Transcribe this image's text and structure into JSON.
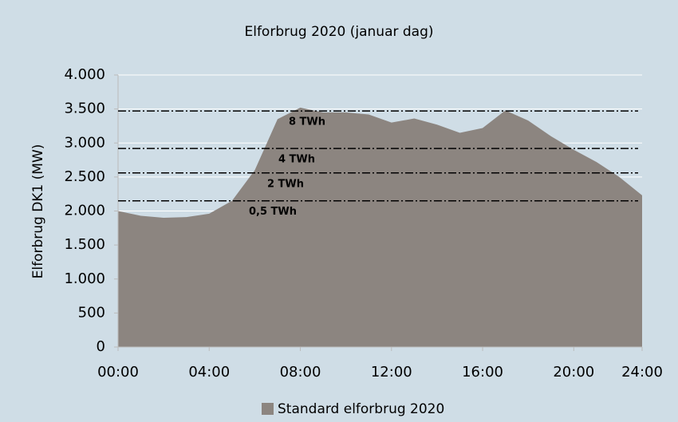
{
  "chart_data": {
    "type": "area",
    "title": "Elforbrug 2020 (januar dag)",
    "y_label": "Elforbrug DK1 (MW)",
    "x": [
      0,
      1,
      2,
      3,
      4,
      5,
      6,
      7,
      8,
      9,
      10,
      11,
      12,
      13,
      14,
      15,
      16,
      17,
      18,
      19,
      20,
      21,
      22,
      23
    ],
    "series": [
      {
        "name": "Standard elforbrug 2020",
        "color": "#8c8580",
        "values": [
          2000,
          1930,
          1900,
          1910,
          1960,
          2150,
          2600,
          3350,
          3520,
          3450,
          3450,
          3420,
          3300,
          3360,
          3270,
          3150,
          3220,
          3480,
          3330,
          3100,
          2900,
          2720,
          2500,
          2230
        ]
      }
    ],
    "xlim": [
      0,
      23
    ],
    "xticks": [
      {
        "value": 0,
        "label": "00:00"
      },
      {
        "value": 4,
        "label": "04:00"
      },
      {
        "value": 8,
        "label": "08:00"
      },
      {
        "value": 12,
        "label": "12:00"
      },
      {
        "value": 16,
        "label": "16:00"
      },
      {
        "value": 20,
        "label": "20:00"
      },
      {
        "value": 23,
        "label": "24:00"
      }
    ],
    "ylim": [
      0,
      4000
    ],
    "yticks": [
      0,
      500,
      {
        "value": 1000,
        "label": "1.000"
      },
      {
        "value": 1500,
        "label": "1.500"
      },
      {
        "value": 2000,
        "label": "2.000"
      },
      {
        "value": 2500,
        "label": "2.500"
      },
      {
        "value": 3000,
        "label": "3.000"
      },
      {
        "value": 3500,
        "label": "3.500"
      },
      {
        "value": 4000,
        "label": "4.000"
      }
    ],
    "grid": true,
    "reference_lines": [
      {
        "label": "8 TWh",
        "value": 3470
      },
      {
        "label": "4 TWh",
        "value": 2920
      },
      {
        "label": "2 TWh",
        "value": 2560
      },
      {
        "label": "0,5 TWh",
        "value": 2150
      }
    ],
    "legend": "bottom"
  }
}
